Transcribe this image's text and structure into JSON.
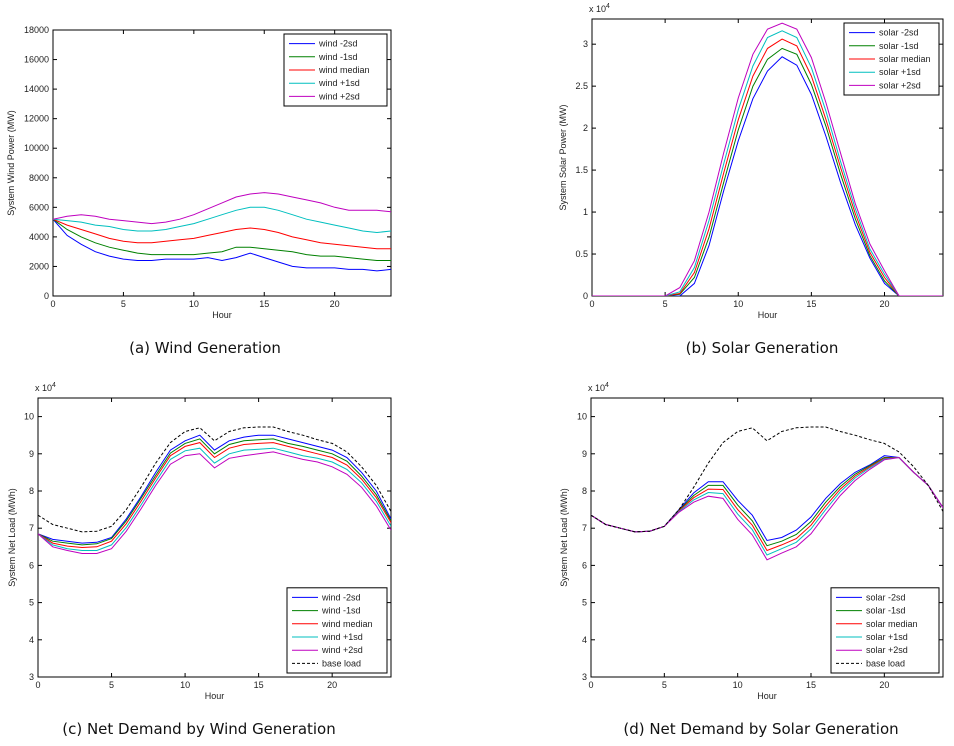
{
  "chart_data": [
    {
      "id": "a",
      "type": "line",
      "caption": "(a) Wind Generation",
      "xlabel": "Hour",
      "ylabel": "System Wind Power (MW)",
      "exponent_label": "",
      "scale": 1,
      "xlim": [
        0,
        24
      ],
      "ylim": [
        0,
        18000
      ],
      "xticks": [
        0,
        5,
        10,
        15,
        20
      ],
      "xtick_labels": [
        "0",
        "5",
        "10",
        "15",
        "20"
      ],
      "yticks": [
        0,
        2000,
        4000,
        6000,
        8000,
        10000,
        12000,
        14000,
        16000,
        18000
      ],
      "ytick_labels": [
        "0",
        "2000",
        "4000",
        "6000",
        "8000",
        "10000",
        "12000",
        "14000",
        "16000",
        "18000"
      ],
      "legend_position": "top-right",
      "x": [
        0,
        1,
        2,
        3,
        4,
        5,
        6,
        7,
        8,
        9,
        10,
        11,
        12,
        13,
        14,
        15,
        16,
        17,
        18,
        19,
        20,
        21,
        22,
        23,
        24
      ],
      "series": [
        {
          "name": "wind -2sd",
          "color": "#0000ff",
          "dash": false,
          "values": [
            5200,
            4100,
            3500,
            3000,
            2700,
            2500,
            2400,
            2400,
            2500,
            2500,
            2500,
            2600,
            2400,
            2600,
            2900,
            2600,
            2300,
            2000,
            1900,
            1900,
            1900,
            1800,
            1800,
            1700,
            1800
          ]
        },
        {
          "name": "wind -1sd",
          "color": "#008000",
          "dash": false,
          "values": [
            5200,
            4500,
            4000,
            3600,
            3300,
            3100,
            2900,
            2800,
            2800,
            2800,
            2800,
            2900,
            3000,
            3300,
            3300,
            3200,
            3100,
            3000,
            2800,
            2700,
            2700,
            2600,
            2500,
            2400,
            2400
          ]
        },
        {
          "name": "wind median",
          "color": "#ff0000",
          "dash": false,
          "values": [
            5200,
            4800,
            4500,
            4200,
            3900,
            3700,
            3600,
            3600,
            3700,
            3800,
            3900,
            4100,
            4300,
            4500,
            4600,
            4500,
            4300,
            4000,
            3800,
            3600,
            3500,
            3400,
            3300,
            3200,
            3200
          ]
        },
        {
          "name": "wind +1sd",
          "color": "#00bfbf",
          "dash": false,
          "values": [
            5200,
            5100,
            5000,
            4800,
            4700,
            4500,
            4400,
            4400,
            4500,
            4700,
            4900,
            5200,
            5500,
            5800,
            6000,
            6000,
            5800,
            5500,
            5200,
            5000,
            4800,
            4600,
            4400,
            4300,
            4400
          ]
        },
        {
          "name": "wind +2sd",
          "color": "#bf00bf",
          "dash": false,
          "values": [
            5200,
            5400,
            5500,
            5400,
            5200,
            5100,
            5000,
            4900,
            5000,
            5200,
            5500,
            5900,
            6300,
            6700,
            6900,
            7000,
            6900,
            6700,
            6500,
            6300,
            6000,
            5800,
            5800,
            5800,
            5700
          ]
        }
      ]
    },
    {
      "id": "b",
      "type": "line",
      "caption": "(b) Solar Generation",
      "xlabel": "Hour",
      "ylabel": "System Solar Power (MW)",
      "exponent_label": "x 10",
      "exponent_power": "4",
      "scale": 10000,
      "xlim": [
        0,
        24
      ],
      "ylim": [
        0,
        3.3
      ],
      "xticks": [
        0,
        5,
        10,
        15,
        20
      ],
      "xtick_labels": [
        "0",
        "5",
        "10",
        "15",
        "20"
      ],
      "yticks": [
        0,
        0.5,
        1,
        1.5,
        2,
        2.5,
        3
      ],
      "ytick_labels": [
        "0",
        "0.5",
        "1",
        "1.5",
        "2",
        "2.5",
        "3"
      ],
      "legend_position": "top-right",
      "x": [
        0,
        1,
        2,
        3,
        4,
        5,
        6,
        7,
        8,
        9,
        10,
        11,
        12,
        13,
        14,
        15,
        16,
        17,
        18,
        19,
        20,
        21,
        22,
        23,
        24
      ],
      "series": [
        {
          "name": "solar -2sd",
          "color": "#0000ff",
          "dash": false,
          "values": [
            0,
            0,
            0,
            0,
            0,
            0,
            0,
            0.15,
            0.6,
            1.25,
            1.85,
            2.35,
            2.68,
            2.85,
            2.75,
            2.4,
            1.9,
            1.35,
            0.85,
            0.45,
            0.15,
            0,
            0,
            0,
            0
          ]
        },
        {
          "name": "solar -1sd",
          "color": "#008000",
          "dash": false,
          "values": [
            0,
            0,
            0,
            0,
            0,
            0,
            0.02,
            0.22,
            0.7,
            1.35,
            1.98,
            2.5,
            2.82,
            2.95,
            2.88,
            2.52,
            2.02,
            1.45,
            0.92,
            0.48,
            0.18,
            0,
            0,
            0,
            0
          ]
        },
        {
          "name": "solar median",
          "color": "#ff0000",
          "dash": false,
          "values": [
            0,
            0,
            0,
            0,
            0,
            0,
            0.03,
            0.28,
            0.8,
            1.46,
            2.1,
            2.62,
            2.95,
            3.06,
            2.98,
            2.62,
            2.1,
            1.53,
            0.98,
            0.52,
            0.22,
            0,
            0,
            0,
            0
          ]
        },
        {
          "name": "solar +1sd",
          "color": "#00bfbf",
          "dash": false,
          "values": [
            0,
            0,
            0,
            0,
            0,
            0,
            0.05,
            0.34,
            0.9,
            1.57,
            2.22,
            2.74,
            3.08,
            3.16,
            3.08,
            2.72,
            2.2,
            1.6,
            1.04,
            0.56,
            0.26,
            0,
            0,
            0,
            0
          ]
        },
        {
          "name": "solar +2sd",
          "color": "#bf00bf",
          "dash": false,
          "values": [
            0,
            0,
            0,
            0,
            0,
            0,
            0.1,
            0.42,
            1.0,
            1.7,
            2.36,
            2.88,
            3.18,
            3.25,
            3.18,
            2.84,
            2.3,
            1.7,
            1.1,
            0.62,
            0.3,
            0,
            0,
            0,
            0
          ]
        }
      ]
    },
    {
      "id": "c",
      "type": "line",
      "caption": "(c) Net Demand by Wind Generation",
      "xlabel": "Hour",
      "ylabel": "System Net Load (MWh)",
      "exponent_label": "x 10",
      "exponent_power": "4",
      "scale": 10000,
      "xlim": [
        0,
        24
      ],
      "ylim": [
        3,
        10.5
      ],
      "xticks": [
        0,
        5,
        10,
        15,
        20
      ],
      "xtick_labels": [
        "0",
        "5",
        "10",
        "15",
        "20"
      ],
      "yticks": [
        3,
        4,
        5,
        6,
        7,
        8,
        9,
        10
      ],
      "ytick_labels": [
        "3",
        "4",
        "5",
        "6",
        "7",
        "8",
        "9",
        "10"
      ],
      "legend_position": "bottom-right",
      "x": [
        0,
        1,
        2,
        3,
        4,
        5,
        6,
        7,
        8,
        9,
        10,
        11,
        12,
        13,
        14,
        15,
        16,
        17,
        18,
        19,
        20,
        21,
        22,
        23,
        24
      ],
      "series": [
        {
          "name": "wind -2sd",
          "color": "#0000ff",
          "dash": false,
          "values": [
            6.85,
            6.7,
            6.65,
            6.6,
            6.62,
            6.75,
            7.25,
            7.85,
            8.5,
            9.1,
            9.35,
            9.5,
            9.1,
            9.35,
            9.45,
            9.5,
            9.5,
            9.4,
            9.3,
            9.2,
            9.1,
            8.9,
            8.5,
            8.0,
            7.25
          ]
        },
        {
          "name": "wind -1sd",
          "color": "#008000",
          "dash": false,
          "values": [
            6.85,
            6.65,
            6.6,
            6.55,
            6.58,
            6.72,
            7.2,
            7.8,
            8.42,
            9.02,
            9.28,
            9.4,
            9.0,
            9.25,
            9.35,
            9.38,
            9.4,
            9.28,
            9.2,
            9.1,
            9.0,
            8.8,
            8.4,
            7.9,
            7.2
          ]
        },
        {
          "name": "wind median",
          "color": "#ff0000",
          "dash": false,
          "values": [
            6.85,
            6.6,
            6.52,
            6.48,
            6.5,
            6.65,
            7.12,
            7.72,
            8.35,
            8.95,
            9.2,
            9.3,
            8.9,
            9.15,
            9.25,
            9.28,
            9.3,
            9.2,
            9.1,
            9.0,
            8.9,
            8.7,
            8.32,
            7.82,
            7.15
          ]
        },
        {
          "name": "wind +1sd",
          "color": "#00bfbf",
          "dash": false,
          "values": [
            6.85,
            6.55,
            6.45,
            6.4,
            6.4,
            6.55,
            7.02,
            7.62,
            8.25,
            8.85,
            9.08,
            9.15,
            8.75,
            9.0,
            9.1,
            9.12,
            9.15,
            9.05,
            8.95,
            8.88,
            8.78,
            8.58,
            8.22,
            7.72,
            7.05
          ]
        },
        {
          "name": "wind +2sd",
          "color": "#bf00bf",
          "dash": false,
          "values": [
            6.85,
            6.5,
            6.4,
            6.32,
            6.32,
            6.45,
            6.92,
            7.52,
            8.15,
            8.72,
            8.95,
            9.0,
            8.62,
            8.88,
            8.95,
            9.0,
            9.05,
            8.95,
            8.85,
            8.78,
            8.65,
            8.45,
            8.1,
            7.6,
            6.95
          ]
        },
        {
          "name": "base load",
          "color": "#000000",
          "dash": true,
          "values": [
            7.35,
            7.1,
            7.0,
            6.9,
            6.92,
            7.05,
            7.5,
            8.1,
            8.75,
            9.3,
            9.6,
            9.7,
            9.35,
            9.6,
            9.7,
            9.72,
            9.72,
            9.6,
            9.5,
            9.38,
            9.28,
            9.05,
            8.65,
            8.15,
            7.45
          ]
        }
      ]
    },
    {
      "id": "d",
      "type": "line",
      "caption": "(d) Net Demand by Solar Generation",
      "xlabel": "Hour",
      "ylabel": "System Net Load (MWh)",
      "exponent_label": "x 10",
      "exponent_power": "4",
      "scale": 10000,
      "xlim": [
        0,
        24
      ],
      "ylim": [
        3,
        10.5
      ],
      "xticks": [
        0,
        5,
        10,
        15,
        20
      ],
      "xtick_labels": [
        "0",
        "5",
        "10",
        "15",
        "20"
      ],
      "yticks": [
        3,
        4,
        5,
        6,
        7,
        8,
        9,
        10
      ],
      "ytick_labels": [
        "3",
        "4",
        "5",
        "6",
        "7",
        "8",
        "9",
        "10"
      ],
      "legend_position": "bottom-right",
      "x": [
        0,
        1,
        2,
        3,
        4,
        5,
        6,
        7,
        8,
        9,
        10,
        11,
        12,
        13,
        14,
        15,
        16,
        17,
        18,
        19,
        20,
        21,
        22,
        23,
        24
      ],
      "series": [
        {
          "name": "solar -2sd",
          "color": "#0000ff",
          "dash": false,
          "values": [
            7.35,
            7.1,
            7.0,
            6.9,
            6.92,
            7.05,
            7.5,
            7.95,
            8.25,
            8.25,
            7.75,
            7.35,
            6.67,
            6.75,
            6.95,
            7.3,
            7.8,
            8.2,
            8.5,
            8.7,
            8.95,
            8.9,
            8.5,
            8.15,
            7.55
          ]
        },
        {
          "name": "solar -1sd",
          "color": "#008000",
          "dash": false,
          "values": [
            7.35,
            7.1,
            7.0,
            6.9,
            6.92,
            7.05,
            7.48,
            7.88,
            8.15,
            8.15,
            7.62,
            7.2,
            6.53,
            6.65,
            6.83,
            7.18,
            7.7,
            8.12,
            8.45,
            8.68,
            8.9,
            8.9,
            8.5,
            8.15,
            7.55
          ]
        },
        {
          "name": "solar median",
          "color": "#ff0000",
          "dash": false,
          "values": [
            7.35,
            7.1,
            7.0,
            6.9,
            6.92,
            7.05,
            7.47,
            7.82,
            8.05,
            8.04,
            7.5,
            7.08,
            6.4,
            6.55,
            6.72,
            7.08,
            7.6,
            8.05,
            8.4,
            8.65,
            8.88,
            8.9,
            8.5,
            8.15,
            7.55
          ]
        },
        {
          "name": "solar +1sd",
          "color": "#00bfbf",
          "dash": false,
          "values": [
            7.35,
            7.1,
            7.0,
            6.9,
            6.92,
            7.05,
            7.45,
            7.76,
            7.96,
            7.93,
            7.38,
            6.96,
            6.28,
            6.45,
            6.62,
            6.98,
            7.5,
            7.98,
            8.35,
            8.62,
            8.86,
            8.9,
            8.5,
            8.15,
            7.55
          ]
        },
        {
          "name": "solar +2sd",
          "color": "#bf00bf",
          "dash": false,
          "values": [
            7.35,
            7.1,
            7.0,
            6.9,
            6.92,
            7.05,
            7.43,
            7.7,
            7.86,
            7.8,
            7.24,
            6.82,
            6.15,
            6.33,
            6.5,
            6.85,
            7.38,
            7.88,
            8.28,
            8.58,
            8.84,
            8.9,
            8.5,
            8.15,
            7.55
          ]
        },
        {
          "name": "base load",
          "color": "#000000",
          "dash": true,
          "values": [
            7.35,
            7.1,
            7.0,
            6.9,
            6.92,
            7.05,
            7.5,
            8.1,
            8.75,
            9.3,
            9.6,
            9.7,
            9.35,
            9.6,
            9.7,
            9.72,
            9.72,
            9.6,
            9.5,
            9.38,
            9.28,
            9.05,
            8.65,
            8.15,
            7.45
          ]
        }
      ]
    }
  ]
}
